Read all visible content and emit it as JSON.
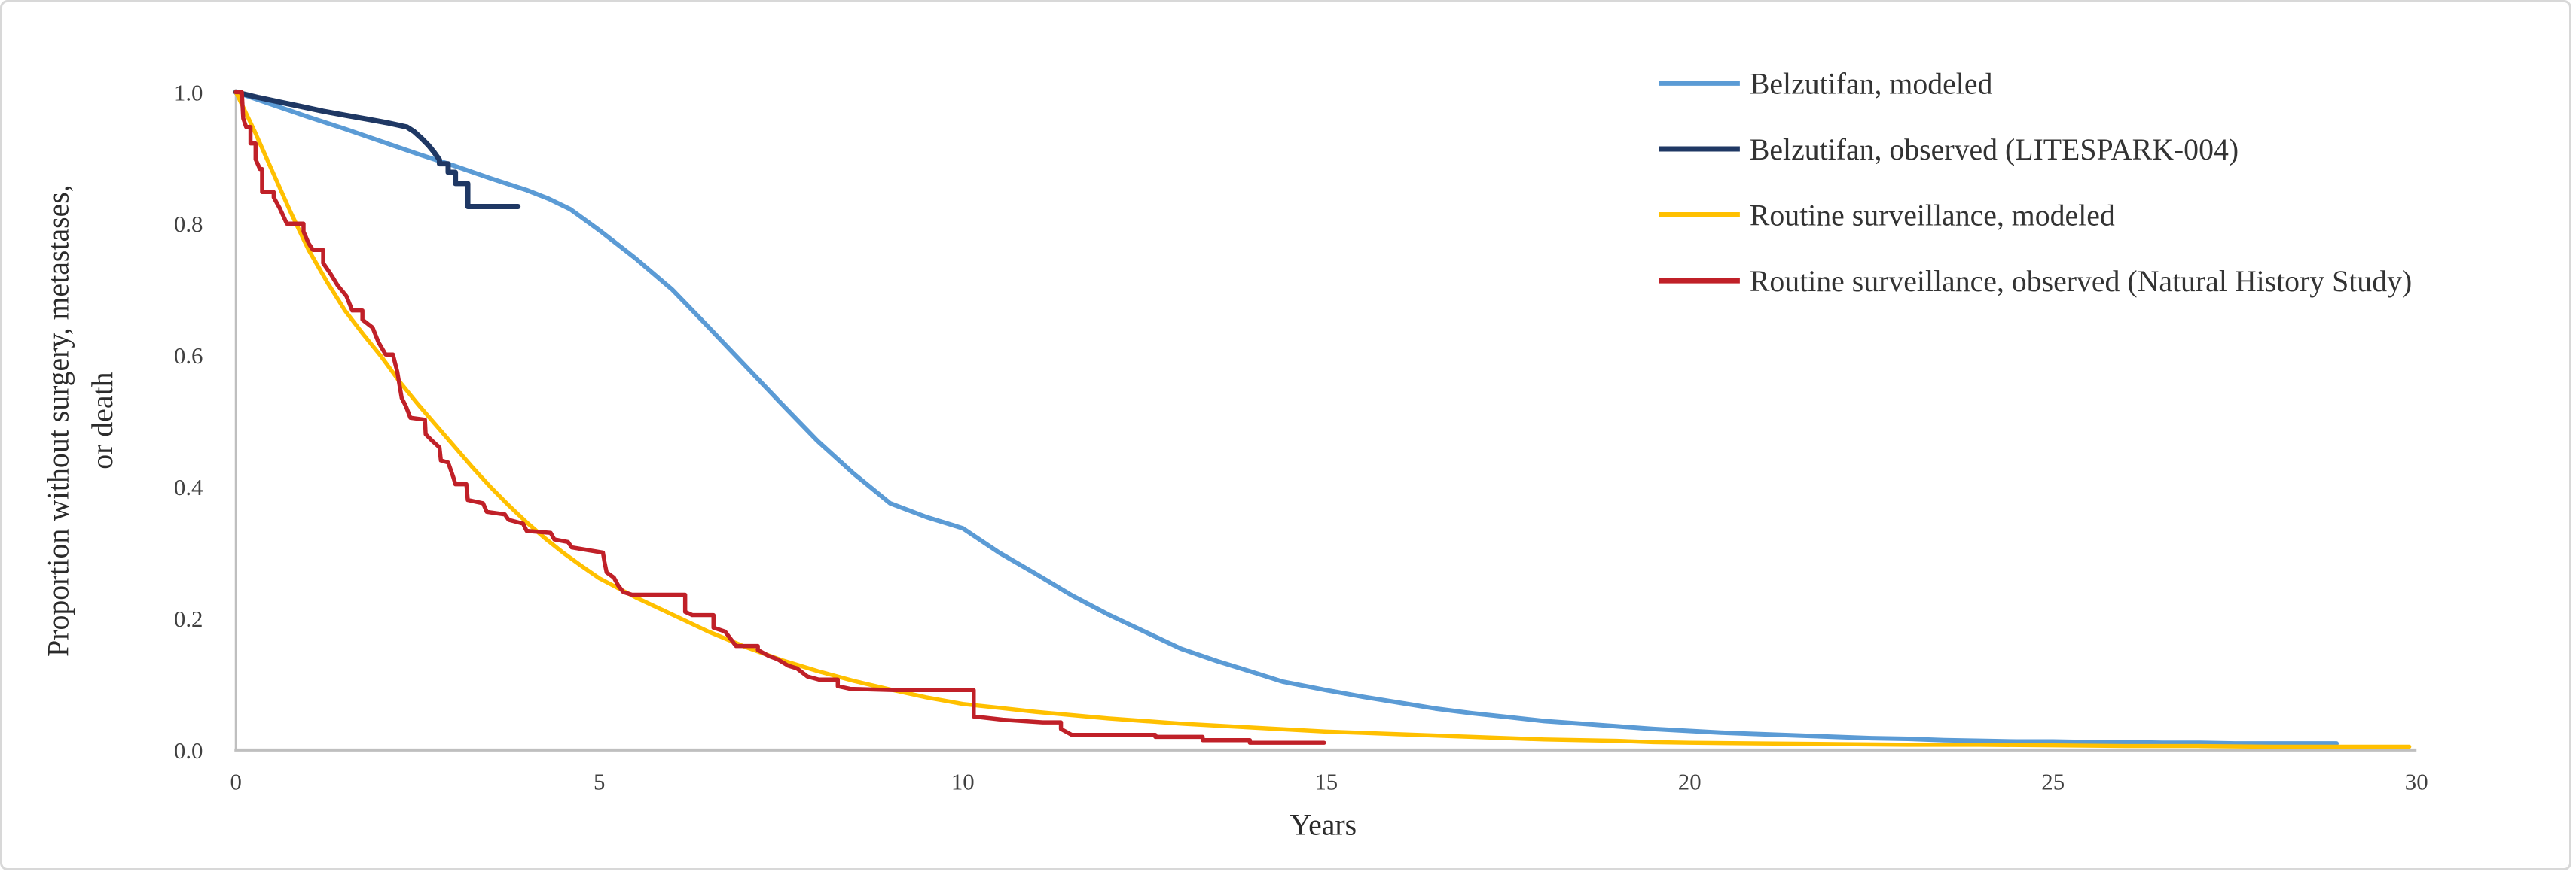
{
  "figure": {
    "background": "#ffffff",
    "border_color": "#d8d8d8"
  },
  "axes_style": {
    "axis_line_color": "#bfbfbf",
    "tick_text_color": "#404040",
    "title_text_color": "#2b2b2b"
  },
  "chart_data": {
    "type": "line",
    "title": "",
    "xlabel": "Years",
    "ylabel_lines": [
      "Proportion without surgery, metastases,",
      "or death"
    ],
    "xlim": [
      0,
      30
    ],
    "ylim": [
      0.0,
      1.0
    ],
    "grid": false,
    "legend_position": "top-right",
    "x_ticks": [
      {
        "value": 0,
        "label": "0"
      },
      {
        "value": 5,
        "label": "5"
      },
      {
        "value": 10,
        "label": "10"
      },
      {
        "value": 15,
        "label": "15"
      },
      {
        "value": 20,
        "label": "20"
      },
      {
        "value": 25,
        "label": "25"
      },
      {
        "value": 30,
        "label": "30"
      }
    ],
    "y_ticks": [
      {
        "value": 1.0,
        "label": "1.0"
      },
      {
        "value": 0.8,
        "label": "0.8"
      },
      {
        "value": 0.6,
        "label": "0.6"
      },
      {
        "value": 0.4,
        "label": "0.4"
      },
      {
        "value": 0.2,
        "label": "0.2"
      },
      {
        "value": 0.0,
        "label": "0.0"
      }
    ],
    "series": [
      {
        "name": "Belzutifan, modeled",
        "color": "#5B9BD5",
        "stroke_width": 6,
        "points": [
          [
            0,
            1.0
          ],
          [
            0.5,
            0.981
          ],
          [
            1,
            0.962
          ],
          [
            1.5,
            0.944
          ],
          [
            2,
            0.925
          ],
          [
            2.5,
            0.906
          ],
          [
            3,
            0.888
          ],
          [
            3.5,
            0.869
          ],
          [
            4,
            0.851
          ],
          [
            4.3,
            0.838
          ],
          [
            4.6,
            0.822
          ],
          [
            5,
            0.79
          ],
          [
            5.5,
            0.747
          ],
          [
            6,
            0.7
          ],
          [
            6.5,
            0.643
          ],
          [
            7,
            0.585
          ],
          [
            7.5,
            0.527
          ],
          [
            8,
            0.47
          ],
          [
            8.5,
            0.42
          ],
          [
            9,
            0.375
          ],
          [
            9.5,
            0.354
          ],
          [
            10,
            0.337
          ],
          [
            10.5,
            0.3
          ],
          [
            11,
            0.268
          ],
          [
            11.5,
            0.235
          ],
          [
            12,
            0.206
          ],
          [
            12.5,
            0.18
          ],
          [
            13,
            0.154
          ],
          [
            13.5,
            0.135
          ],
          [
            14,
            0.118
          ],
          [
            14.4,
            0.104
          ],
          [
            15,
            0.091
          ],
          [
            15.5,
            0.081
          ],
          [
            16,
            0.072
          ],
          [
            16.5,
            0.063
          ],
          [
            17,
            0.056
          ],
          [
            17.5,
            0.05
          ],
          [
            18,
            0.044
          ],
          [
            18.5,
            0.04
          ],
          [
            19,
            0.036
          ],
          [
            19.5,
            0.032
          ],
          [
            20,
            0.029
          ],
          [
            20.5,
            0.026
          ],
          [
            21,
            0.024
          ],
          [
            21.5,
            0.022
          ],
          [
            22,
            0.02
          ],
          [
            22.5,
            0.018
          ],
          [
            23,
            0.017
          ],
          [
            23.5,
            0.015
          ],
          [
            24,
            0.014
          ],
          [
            24.5,
            0.013
          ],
          [
            25,
            0.013
          ],
          [
            25.5,
            0.012
          ],
          [
            26,
            0.012
          ],
          [
            26.5,
            0.011
          ],
          [
            27,
            0.011
          ],
          [
            27.5,
            0.01
          ],
          [
            28,
            0.01
          ],
          [
            28.5,
            0.01
          ],
          [
            28.9,
            0.01
          ]
        ]
      },
      {
        "name": "Belzutifan, observed (LITESPARK-004)",
        "color": "#1F3864",
        "stroke_width": 7,
        "points": [
          [
            0,
            1.0
          ],
          [
            0.3,
            0.992
          ],
          [
            0.6,
            0.985
          ],
          [
            0.9,
            0.978
          ],
          [
            1.2,
            0.971
          ],
          [
            1.5,
            0.965
          ],
          [
            1.8,
            0.959
          ],
          [
            2.1,
            0.953
          ],
          [
            2.35,
            0.947
          ],
          [
            2.45,
            0.94
          ],
          [
            2.55,
            0.93
          ],
          [
            2.65,
            0.919
          ],
          [
            2.73,
            0.908
          ],
          [
            2.8,
            0.897
          ],
          [
            2.8,
            0.891
          ],
          [
            2.92,
            0.891
          ],
          [
            2.92,
            0.878
          ],
          [
            3.02,
            0.878
          ],
          [
            3.02,
            0.861
          ],
          [
            3.19,
            0.861
          ],
          [
            3.19,
            0.826
          ],
          [
            3.88,
            0.826
          ]
        ]
      },
      {
        "name": "Routine surveillance, modeled",
        "color": "#FFC000",
        "stroke_width": 5.5,
        "points": [
          [
            0,
            1.0
          ],
          [
            0.25,
            0.942
          ],
          [
            0.5,
            0.88
          ],
          [
            0.75,
            0.818
          ],
          [
            1,
            0.76
          ],
          [
            1.25,
            0.712
          ],
          [
            1.5,
            0.668
          ],
          [
            1.75,
            0.632
          ],
          [
            2,
            0.598
          ],
          [
            2.25,
            0.56
          ],
          [
            2.5,
            0.526
          ],
          [
            2.75,
            0.494
          ],
          [
            3,
            0.462
          ],
          [
            3.25,
            0.43
          ],
          [
            3.5,
            0.4
          ],
          [
            3.75,
            0.372
          ],
          [
            4,
            0.346
          ],
          [
            4.25,
            0.322
          ],
          [
            4.5,
            0.3
          ],
          [
            4.75,
            0.28
          ],
          [
            5,
            0.261
          ],
          [
            5.5,
            0.232
          ],
          [
            6,
            0.206
          ],
          [
            6.5,
            0.18
          ],
          [
            7,
            0.157
          ],
          [
            7.5,
            0.137
          ],
          [
            8,
            0.12
          ],
          [
            8.5,
            0.105
          ],
          [
            9,
            0.092
          ],
          [
            9.5,
            0.08
          ],
          [
            10,
            0.07
          ],
          [
            10.5,
            0.064
          ],
          [
            11,
            0.058
          ],
          [
            11.5,
            0.053
          ],
          [
            12,
            0.048
          ],
          [
            12.5,
            0.044
          ],
          [
            13,
            0.04
          ],
          [
            13.5,
            0.037
          ],
          [
            14,
            0.034
          ],
          [
            14.5,
            0.031
          ],
          [
            15,
            0.028
          ],
          [
            15.5,
            0.026
          ],
          [
            16,
            0.024
          ],
          [
            16.5,
            0.022
          ],
          [
            17,
            0.02
          ],
          [
            17.5,
            0.018
          ],
          [
            18,
            0.016
          ],
          [
            18.5,
            0.015
          ],
          [
            19,
            0.014
          ],
          [
            19.5,
            0.012
          ],
          [
            20,
            0.011
          ],
          [
            21,
            0.01
          ],
          [
            22,
            0.009
          ],
          [
            23,
            0.008
          ],
          [
            24,
            0.008
          ],
          [
            25,
            0.007
          ],
          [
            26,
            0.006
          ],
          [
            27,
            0.006
          ],
          [
            28,
            0.005
          ],
          [
            29,
            0.005
          ],
          [
            29.9,
            0.005
          ]
        ]
      },
      {
        "name": "Routine surveillance, observed (Natural History Study)",
        "color": "#C02028",
        "stroke_width": 5.5,
        "points": [
          [
            0,
            1.0
          ],
          [
            0.08,
            1.0
          ],
          [
            0.1,
            0.96
          ],
          [
            0.14,
            0.947
          ],
          [
            0.2,
            0.947
          ],
          [
            0.2,
            0.922
          ],
          [
            0.27,
            0.922
          ],
          [
            0.27,
            0.898
          ],
          [
            0.33,
            0.883
          ],
          [
            0.36,
            0.883
          ],
          [
            0.36,
            0.848
          ],
          [
            0.52,
            0.848
          ],
          [
            0.52,
            0.84
          ],
          [
            0.6,
            0.824
          ],
          [
            0.65,
            0.812
          ],
          [
            0.7,
            0.8
          ],
          [
            0.93,
            0.8
          ],
          [
            0.93,
            0.788
          ],
          [
            1.0,
            0.77
          ],
          [
            1.06,
            0.76
          ],
          [
            1.2,
            0.76
          ],
          [
            1.2,
            0.74
          ],
          [
            1.3,
            0.724
          ],
          [
            1.4,
            0.706
          ],
          [
            1.52,
            0.69
          ],
          [
            1.6,
            0.668
          ],
          [
            1.74,
            0.668
          ],
          [
            1.74,
            0.654
          ],
          [
            1.88,
            0.642
          ],
          [
            1.96,
            0.62
          ],
          [
            2.06,
            0.601
          ],
          [
            2.16,
            0.601
          ],
          [
            2.22,
            0.575
          ],
          [
            2.28,
            0.535
          ],
          [
            2.34,
            0.522
          ],
          [
            2.4,
            0.505
          ],
          [
            2.6,
            0.502
          ],
          [
            2.61,
            0.48
          ],
          [
            2.7,
            0.47
          ],
          [
            2.8,
            0.46
          ],
          [
            2.82,
            0.44
          ],
          [
            2.92,
            0.437
          ],
          [
            2.99,
            0.415
          ],
          [
            3.02,
            0.404
          ],
          [
            3.17,
            0.404
          ],
          [
            3.19,
            0.38
          ],
          [
            3.4,
            0.375
          ],
          [
            3.45,
            0.362
          ],
          [
            3.7,
            0.358
          ],
          [
            3.75,
            0.35
          ],
          [
            3.95,
            0.344
          ],
          [
            4.0,
            0.333
          ],
          [
            4.33,
            0.33
          ],
          [
            4.38,
            0.32
          ],
          [
            4.57,
            0.316
          ],
          [
            4.62,
            0.308
          ],
          [
            5.05,
            0.3
          ],
          [
            5.07,
            0.286
          ],
          [
            5.1,
            0.27
          ],
          [
            5.2,
            0.262
          ],
          [
            5.26,
            0.25
          ],
          [
            5.33,
            0.24
          ],
          [
            5.45,
            0.236
          ],
          [
            6.18,
            0.236
          ],
          [
            6.18,
            0.21
          ],
          [
            6.28,
            0.205
          ],
          [
            6.57,
            0.205
          ],
          [
            6.57,
            0.186
          ],
          [
            6.73,
            0.18
          ],
          [
            6.88,
            0.158
          ],
          [
            7.18,
            0.158
          ],
          [
            7.18,
            0.152
          ],
          [
            7.33,
            0.143
          ],
          [
            7.45,
            0.138
          ],
          [
            7.6,
            0.128
          ],
          [
            7.72,
            0.124
          ],
          [
            7.86,
            0.112
          ],
          [
            8.02,
            0.107
          ],
          [
            8.28,
            0.107
          ],
          [
            8.28,
            0.097
          ],
          [
            8.45,
            0.093
          ],
          [
            9.05,
            0.091
          ],
          [
            10.15,
            0.091
          ],
          [
            10.15,
            0.051
          ],
          [
            10.55,
            0.046
          ],
          [
            11.1,
            0.042
          ],
          [
            11.35,
            0.042
          ],
          [
            11.35,
            0.032
          ],
          [
            11.5,
            0.023
          ],
          [
            12.65,
            0.023
          ],
          [
            12.65,
            0.02
          ],
          [
            13.3,
            0.02
          ],
          [
            13.3,
            0.015
          ],
          [
            13.95,
            0.015
          ],
          [
            13.95,
            0.011
          ],
          [
            14.97,
            0.011
          ]
        ]
      }
    ]
  },
  "legend": {
    "items": [
      {
        "label": "Belzutifan, modeled",
        "color": "#5B9BD5"
      },
      {
        "label": "Belzutifan, observed (LITESPARK-004)",
        "color": "#1F3864"
      },
      {
        "label": "Routine surveillance, modeled",
        "color": "#FFC000"
      },
      {
        "label": "Routine surveillance, observed (Natural History Study)",
        "color": "#C02028"
      }
    ]
  }
}
